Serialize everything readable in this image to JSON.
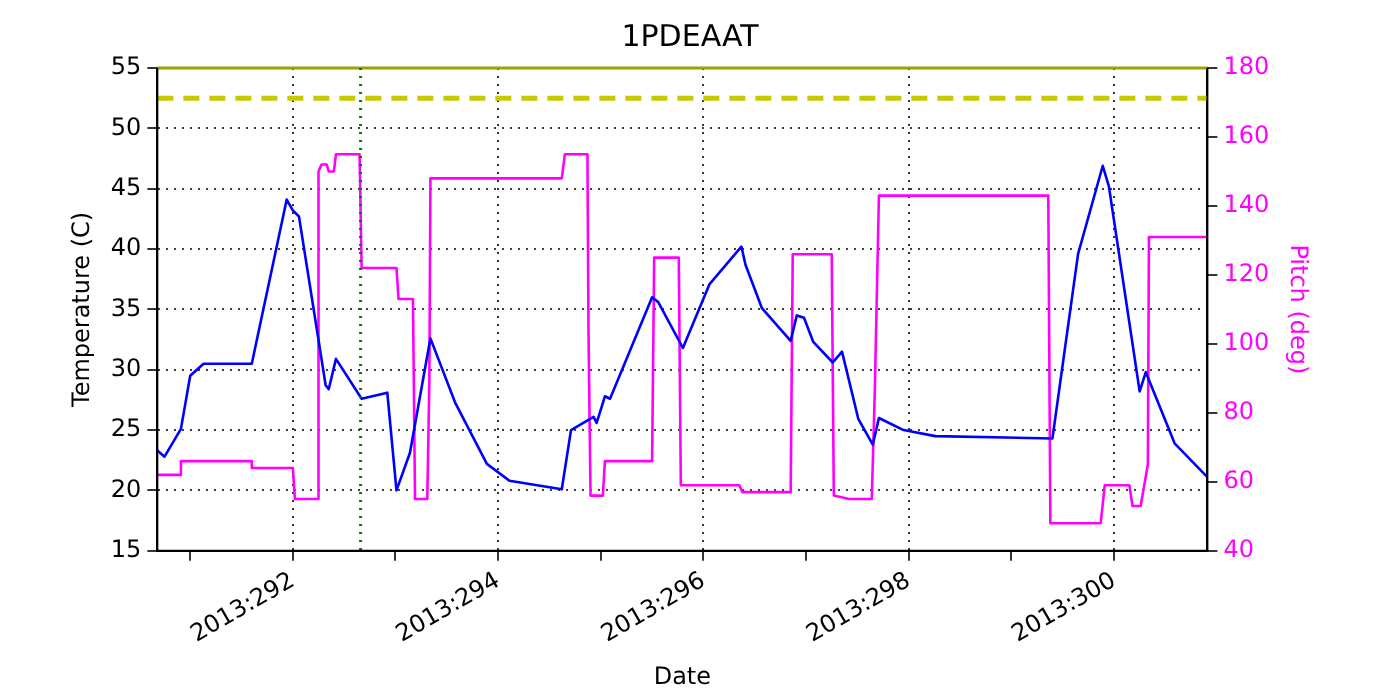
{
  "chart_data": {
    "type": "line",
    "title": "1PDEAAT",
    "xlabel": "Date",
    "ylabel": "Temperature (C)",
    "y2label": "Pitch (deg)",
    "xlim": [
      "2013-10-17T16:19",
      "2013-10-27T21:50"
    ],
    "xticks": [
      {
        "value": "2013-10-18",
        "label": null
      },
      {
        "value": "2013-10-19",
        "label": "2013:292"
      },
      {
        "value": "2013-10-20",
        "label": null
      },
      {
        "value": "2013-10-21",
        "label": "2013:294"
      },
      {
        "value": "2013-10-22",
        "label": null
      },
      {
        "value": "2013-10-23",
        "label": "2013:296"
      },
      {
        "value": "2013-10-24",
        "label": null
      },
      {
        "value": "2013-10-25",
        "label": "2013:298"
      },
      {
        "value": "2013-10-26",
        "label": null
      },
      {
        "value": "2013-10-27",
        "label": "2013:300"
      }
    ],
    "ylim": [
      15,
      55
    ],
    "yticks": [
      15,
      20,
      25,
      30,
      35,
      40,
      45,
      50,
      55
    ],
    "y2lim": [
      40,
      180
    ],
    "y2ticks": [
      40,
      60,
      80,
      100,
      120,
      140,
      160,
      180
    ],
    "grid": true,
    "legend": false,
    "marker": "none",
    "line_style": "solid",
    "ref_lines": [
      {
        "axis": "y",
        "value": 52.5,
        "color": "#c8c800",
        "line_style": "dashed"
      },
      {
        "axis": "y",
        "value": 55,
        "color": "#a0a000",
        "line_style": "solid"
      },
      {
        "axis": "x",
        "value": "2013-10-19T15:50",
        "color": "#008000",
        "line_style": "dotted"
      }
    ],
    "series": [
      {
        "color": "#0000ff",
        "x": [
          "2013-10-17T16:19",
          "2013-10-17T18:00",
          "2013-10-17T21:50",
          "2013-10-18T00:00",
          "2013-10-18T03:07",
          "2013-10-18T14:24",
          "2013-10-18T22:34",
          "2013-10-19T00:00",
          "2013-10-19T01:26",
          "2013-10-19T07:41",
          "2013-10-19T08:24",
          "2013-10-19T10:05",
          "2013-10-19T16:05",
          "2013-10-19T22:05",
          "2013-10-20T00:14",
          "2013-10-20T03:22",
          "2013-10-20T08:10",
          "2013-10-20T13:55",
          "2013-10-20T21:22",
          "2013-10-21T02:38",
          "2013-10-21T14:53",
          "2013-10-21T17:02",
          "2013-10-21T22:19",
          "2013-10-21T23:02",
          "2013-10-22T00:58",
          "2013-10-22T02:10",
          "2013-10-22T12:00",
          "2013-10-22T13:26",
          "2013-10-22T19:12",
          "2013-10-23T01:26",
          "2013-10-23T08:53",
          "2013-10-23T09:50",
          "2013-10-23T13:41",
          "2013-10-23T20:24",
          "2013-10-23T21:50",
          "2013-10-23T23:31",
          "2013-10-24T01:41",
          "2013-10-24T06:14",
          "2013-10-24T08:24",
          "2013-10-24T12:14",
          "2013-10-24T15:36",
          "2013-10-24T17:02",
          "2013-10-24T22:48",
          "2013-10-25T06:14",
          "2013-10-26T09:36",
          "2013-10-26T15:36",
          "2013-10-26T21:22",
          "2013-10-26T22:48",
          "2013-10-27T06:00",
          "2013-10-27T07:26",
          "2013-10-27T14:10",
          "2013-10-27T21:50"
        ],
        "values": [
          23.3,
          22.8,
          25.1,
          29.5,
          30.5,
          30.5,
          44.1,
          43.2,
          42.7,
          28.7,
          28.4,
          30.9,
          27.6,
          28.1,
          20.0,
          23.1,
          32.6,
          27.3,
          22.2,
          20.8,
          20.1,
          25.0,
          26.1,
          25.6,
          27.8,
          27.6,
          36.0,
          35.6,
          31.8,
          37.1,
          40.2,
          38.7,
          35.1,
          32.4,
          34.5,
          34.3,
          32.3,
          30.6,
          31.5,
          25.9,
          23.8,
          26.0,
          25.0,
          24.5,
          24.3,
          39.6,
          46.9,
          45.2,
          28.2,
          29.8,
          23.9,
          21.1
        ]
      },
      {
        "color": "#ff00ff",
        "axis": "y2",
        "x": [
          "2013-10-17T16:19",
          "2013-10-17T21:50",
          "2013-10-17T21:50",
          "2013-10-18T14:24",
          "2013-10-18T14:24",
          "2013-10-19T00:00",
          "2013-10-19T00:29",
          "2013-10-19T06:00",
          "2013-10-19T06:00",
          "2013-10-19T06:43",
          "2013-10-19T07:55",
          "2013-10-19T08:24",
          "2013-10-19T09:36",
          "2013-10-19T10:05",
          "2013-10-19T15:36",
          "2013-10-19T16:05",
          "2013-10-20T00:14",
          "2013-10-20T00:43",
          "2013-10-20T04:05",
          "2013-10-20T04:34",
          "2013-10-20T07:26",
          "2013-10-20T07:55",
          "2013-10-20T08:10",
          "2013-10-21T14:53",
          "2013-10-21T15:36",
          "2013-10-21T20:53",
          "2013-10-21T21:07",
          "2013-10-21T21:36",
          "2013-10-22T00:29",
          "2013-10-22T00:58",
          "2013-10-22T12:00",
          "2013-10-22T12:29",
          "2013-10-22T18:14",
          "2013-10-22T18:43",
          "2013-10-23T08:24",
          "2013-10-23T09:07",
          "2013-10-23T20:24",
          "2013-10-23T20:53",
          "2013-10-24T06:00",
          "2013-10-24T06:29",
          "2013-10-24T10:05",
          "2013-10-24T15:22",
          "2013-10-24T16:05",
          "2013-10-24T17:02",
          "2013-10-26T08:38",
          "2013-10-26T09:07",
          "2013-10-26T20:53",
          "2013-10-26T21:50",
          "2013-10-27T03:36",
          "2013-10-27T04:19",
          "2013-10-27T06:14",
          "2013-10-27T07:55",
          "2013-10-27T08:10",
          "2013-10-27T21:50"
        ],
        "values": [
          62,
          62,
          66,
          66,
          64,
          64,
          55,
          55,
          150,
          152,
          152,
          150,
          150,
          155,
          155,
          122,
          122,
          113,
          113,
          55,
          55,
          89,
          148,
          148,
          155,
          155,
          105,
          56,
          56,
          66,
          66,
          125,
          125,
          59,
          59,
          57,
          57,
          126,
          126,
          56,
          55,
          55,
          87,
          143,
          143,
          48,
          48,
          59,
          59,
          53,
          53,
          65,
          131,
          131
        ]
      }
    ]
  }
}
